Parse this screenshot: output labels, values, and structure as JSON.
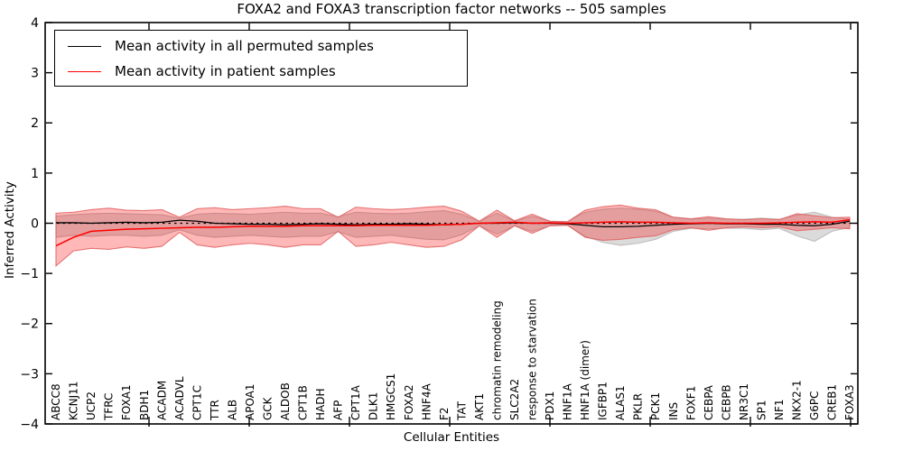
{
  "title": "FOXA2 and FOXA3 transcription factor networks -- 505 samples",
  "chart_data": {
    "type": "line",
    "title": "FOXA2 and FOXA3 transcription factor networks -- 505 samples",
    "xlabel": "Cellular Entities",
    "ylabel": "Inferred Activity",
    "ylim": [
      -4,
      4
    ],
    "yticks": [
      4,
      3,
      2,
      1,
      0,
      -1,
      -2,
      -3,
      -4
    ],
    "grid": false,
    "legend_position": "upper left",
    "zero_reference_line": true,
    "categories": [
      "ABCC8",
      "KCNJ11",
      "UCP2",
      "TFRC",
      "FOXA1",
      "BDH1",
      "ACADM",
      "ACADVL",
      "CPT1C",
      "TTR",
      "ALB",
      "APOA1",
      "GCK",
      "ALDOB",
      "CPT1B",
      "HADH",
      "AFP",
      "CPT1A",
      "DLK1",
      "HMGCS1",
      "FOXA2",
      "HNF4A",
      "F2",
      "TAT",
      "AKT1",
      "chromatin remodeling",
      "SLC2A2",
      "response to starvation",
      "PDX1",
      "HNF1A",
      "HNF1A (dimer)",
      "IGFBP1",
      "ALAS1",
      "PKLR",
      "PCK1",
      "INS",
      "FOXF1",
      "CEBPA",
      "CEBPB",
      "NR3C1",
      "SP1",
      "NF1",
      "NKX2-1",
      "G6PC",
      "CREB1",
      "FOXA3"
    ],
    "legend": [
      {
        "label": "Mean activity in all permuted samples",
        "color": "#000000"
      },
      {
        "label": "Mean activity in patient samples",
        "color": "#ff0000"
      }
    ],
    "series": [
      {
        "name": "Mean activity in all permuted samples",
        "color": "#000000",
        "values": [
          0.01,
          0.01,
          0.0,
          0.01,
          0.02,
          0.01,
          0.02,
          0.06,
          0.04,
          0.0,
          -0.01,
          -0.02,
          -0.02,
          -0.03,
          -0.02,
          -0.01,
          -0.02,
          -0.03,
          -0.02,
          -0.02,
          -0.01,
          -0.02,
          -0.03,
          -0.02,
          0.0,
          0.0,
          0.01,
          0.0,
          0.0,
          -0.01,
          -0.04,
          -0.07,
          -0.07,
          -0.06,
          -0.04,
          -0.02,
          -0.01,
          0.0,
          -0.01,
          -0.01,
          -0.02,
          -0.02,
          -0.04,
          -0.05,
          -0.02,
          0.04
        ]
      },
      {
        "name": "Mean activity in patient samples",
        "color": "#ff0000",
        "values": [
          -0.45,
          -0.28,
          -0.16,
          -0.14,
          -0.12,
          -0.11,
          -0.1,
          -0.09,
          -0.08,
          -0.08,
          -0.07,
          -0.06,
          -0.06,
          -0.06,
          -0.05,
          -0.05,
          -0.05,
          -0.05,
          -0.04,
          -0.04,
          -0.04,
          -0.04,
          -0.03,
          -0.02,
          0.0,
          0.01,
          0.02,
          0.0,
          0.01,
          0.0,
          0.01,
          0.02,
          0.03,
          0.02,
          0.02,
          0.01,
          0.0,
          0.01,
          0.0,
          0.0,
          0.0,
          0.01,
          0.02,
          0.03,
          0.02,
          0.07
        ]
      }
    ],
    "bands": [
      {
        "name": "permuted-range",
        "fill": "#a0a0a0",
        "fill_opacity": 0.38,
        "stroke": "#b8b8b8",
        "stroke_opacity": 0.9,
        "hi": [
          0.14,
          0.17,
          0.19,
          0.2,
          0.19,
          0.18,
          0.17,
          0.1,
          0.18,
          0.2,
          0.19,
          0.18,
          0.2,
          0.22,
          0.2,
          0.2,
          0.13,
          0.22,
          0.2,
          0.19,
          0.2,
          0.23,
          0.25,
          0.18,
          0.04,
          0.2,
          0.04,
          0.14,
          0.04,
          0.03,
          0.22,
          0.28,
          0.3,
          0.28,
          0.24,
          0.12,
          0.08,
          0.1,
          0.08,
          0.08,
          0.1,
          0.08,
          0.16,
          0.22,
          0.12,
          0.08
        ],
        "lo": [
          -0.28,
          -0.24,
          -0.26,
          -0.24,
          -0.24,
          -0.26,
          -0.24,
          -0.13,
          -0.24,
          -0.28,
          -0.26,
          -0.24,
          -0.26,
          -0.28,
          -0.26,
          -0.26,
          -0.17,
          -0.28,
          -0.26,
          -0.24,
          -0.28,
          -0.32,
          -0.33,
          -0.23,
          -0.05,
          -0.22,
          -0.05,
          -0.16,
          -0.05,
          -0.04,
          -0.26,
          -0.38,
          -0.44,
          -0.4,
          -0.32,
          -0.16,
          -0.1,
          -0.11,
          -0.1,
          -0.1,
          -0.13,
          -0.1,
          -0.25,
          -0.36,
          -0.16,
          -0.08
        ]
      },
      {
        "name": "patient-range",
        "fill": "#ff0000",
        "fill_opacity": 0.28,
        "stroke": "#e06060",
        "stroke_opacity": 0.85,
        "hi": [
          0.2,
          0.22,
          0.27,
          0.3,
          0.26,
          0.25,
          0.27,
          0.12,
          0.29,
          0.31,
          0.27,
          0.29,
          0.31,
          0.34,
          0.29,
          0.29,
          0.12,
          0.32,
          0.29,
          0.27,
          0.29,
          0.32,
          0.34,
          0.24,
          0.04,
          0.26,
          0.05,
          0.18,
          0.04,
          0.03,
          0.26,
          0.33,
          0.36,
          0.3,
          0.27,
          0.12,
          0.09,
          0.13,
          0.09,
          0.07,
          0.09,
          0.07,
          0.19,
          0.15,
          0.11,
          0.12
        ],
        "lo": [
          -0.85,
          -0.55,
          -0.5,
          -0.52,
          -0.47,
          -0.5,
          -0.46,
          -0.18,
          -0.43,
          -0.48,
          -0.43,
          -0.4,
          -0.43,
          -0.48,
          -0.43,
          -0.43,
          -0.16,
          -0.46,
          -0.43,
          -0.38,
          -0.43,
          -0.48,
          -0.46,
          -0.33,
          -0.05,
          -0.28,
          -0.05,
          -0.2,
          -0.05,
          -0.04,
          -0.28,
          -0.34,
          -0.32,
          -0.28,
          -0.25,
          -0.13,
          -0.09,
          -0.14,
          -0.09,
          -0.07,
          -0.09,
          -0.07,
          -0.15,
          -0.12,
          -0.09,
          -0.11
        ]
      }
    ]
  }
}
